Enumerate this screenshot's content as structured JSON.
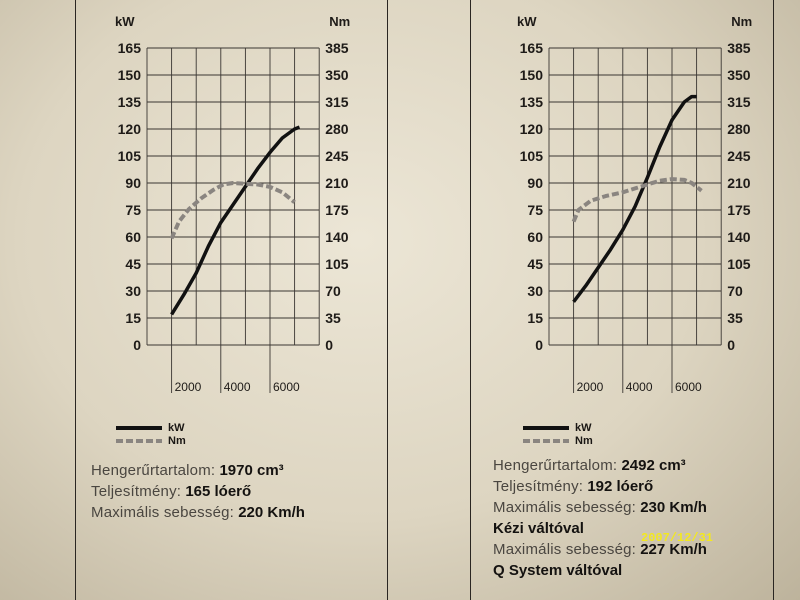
{
  "chart_data": [
    {
      "type": "line",
      "y_left_unit": "kW",
      "y_right_unit": "Nm",
      "y_left_ticks": [
        "165",
        "150",
        "135",
        "120",
        "105",
        "90",
        "75",
        "60",
        "45",
        "30",
        "15",
        "0"
      ],
      "y_right_ticks": [
        "385",
        "350",
        "315",
        "280",
        "245",
        "210",
        "175",
        "140",
        "105",
        "70",
        "35",
        "0"
      ],
      "x_ticks": [
        "2000",
        "4000",
        "6000"
      ],
      "ylim_left": [
        0,
        165
      ],
      "ylim_right": [
        0,
        385
      ],
      "grid": true,
      "series": [
        {
          "name": "kW",
          "axis": "left",
          "color": "#111111",
          "style": "solid",
          "x": [
            1000,
            1500,
            2000,
            2500,
            3000,
            3500,
            4000,
            4500,
            5000,
            5500,
            6000,
            6200
          ],
          "y": [
            17,
            28,
            40,
            55,
            68,
            78,
            88,
            98,
            107,
            115,
            120,
            121
          ]
        },
        {
          "name": "Nm",
          "axis": "right",
          "color": "#8a8580",
          "style": "dashed",
          "x": [
            1000,
            1300,
            1700,
            2200,
            2700,
            3100,
            3500,
            4000,
            4500,
            5000,
            5500,
            6000
          ],
          "y": [
            138,
            160,
            176,
            190,
            201,
            208,
            210,
            209,
            208,
            205,
            198,
            185
          ]
        }
      ]
    },
    {
      "type": "line",
      "y_left_unit": "kW",
      "y_right_unit": "Nm",
      "y_left_ticks": [
        "165",
        "150",
        "135",
        "120",
        "105",
        "90",
        "75",
        "60",
        "45",
        "30",
        "15",
        "0"
      ],
      "y_right_ticks": [
        "385",
        "350",
        "315",
        "280",
        "245",
        "210",
        "175",
        "140",
        "105",
        "70",
        "35",
        "0"
      ],
      "x_ticks": [
        "2000",
        "4000",
        "6000"
      ],
      "ylim_left": [
        0,
        165
      ],
      "ylim_right": [
        0,
        385
      ],
      "grid": true,
      "series": [
        {
          "name": "kW",
          "axis": "left",
          "color": "#111111",
          "style": "solid",
          "x": [
            1000,
            1500,
            2000,
            2500,
            3000,
            3500,
            4000,
            4500,
            5000,
            5500,
            5800,
            6000
          ],
          "y": [
            24,
            33,
            43,
            53,
            64,
            77,
            93,
            110,
            125,
            135,
            138,
            138
          ]
        },
        {
          "name": "Nm",
          "axis": "right",
          "color": "#8a8580",
          "style": "dashed",
          "x": [
            1000,
            1200,
            1700,
            2300,
            3000,
            3500,
            4000,
            4500,
            5000,
            5500,
            5800,
            6200
          ],
          "y": [
            160,
            175,
            187,
            193,
            198,
            203,
            208,
            213,
            215,
            214,
            210,
            200
          ]
        }
      ]
    }
  ],
  "legend": {
    "kw": "kW",
    "nm": "Nm"
  },
  "left_specs": {
    "displacement_label": "Hengerűrtartalom:",
    "displacement_value": "1970 cm³",
    "power_label": "Teljesítmény:",
    "power_value": "165 lóerő",
    "speed_label": "Maximális sebesség:",
    "speed_value": "220 Km/h"
  },
  "right_specs": {
    "displacement_label": "Hengerűrtartalom:",
    "displacement_value": "2492 cm³",
    "power_label": "Teljesítmény:",
    "power_value": "192 lóerő",
    "speed1_label": "Maximális sebesség:",
    "speed1_value": "230 Km/h",
    "speed1_note": "Kézi váltóval",
    "speed2_label": "Maximális sebesség:",
    "speed2_value": "227 Km/h",
    "speed2_note": "Q System váltóval"
  },
  "timestamp": "2007/12/31"
}
